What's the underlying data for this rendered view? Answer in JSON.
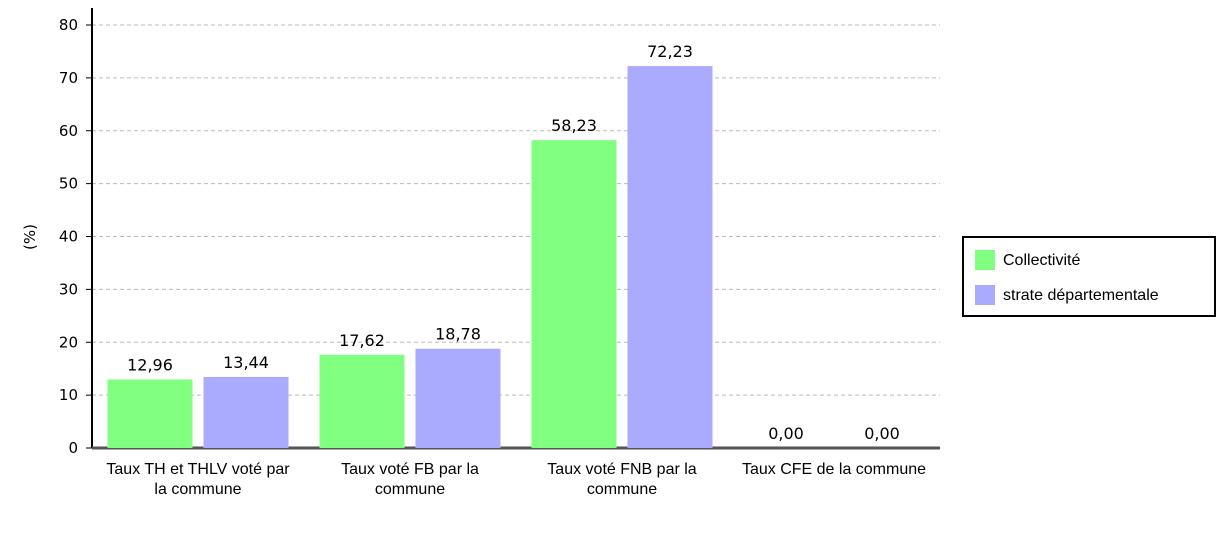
{
  "chart_data": {
    "type": "bar",
    "y_label": "(%)",
    "categories": [
      "Taux TH et THLV voté par la commune",
      "Taux voté FB par la commune",
      "Taux voté FNB par la commune",
      "Taux CFE de la commune"
    ],
    "series": [
      {
        "name": "Collectivité",
        "color": "#80ff80",
        "values": [
          12.96,
          17.62,
          58.23,
          0
        ],
        "value_labels": [
          "12,96",
          "17,62",
          "58,23",
          "0,00"
        ]
      },
      {
        "name": "strate départementale",
        "color": "#aaaaff",
        "values": [
          13.44,
          18.78,
          72.23,
          0
        ],
        "value_labels": [
          "13,44",
          "18,78",
          "72,23",
          "0,00"
        ]
      }
    ],
    "ylim": [
      0,
      80
    ],
    "yticks": [
      0,
      10,
      20,
      30,
      40,
      50,
      60,
      70,
      80
    ],
    "grid": true,
    "legend": "right"
  }
}
